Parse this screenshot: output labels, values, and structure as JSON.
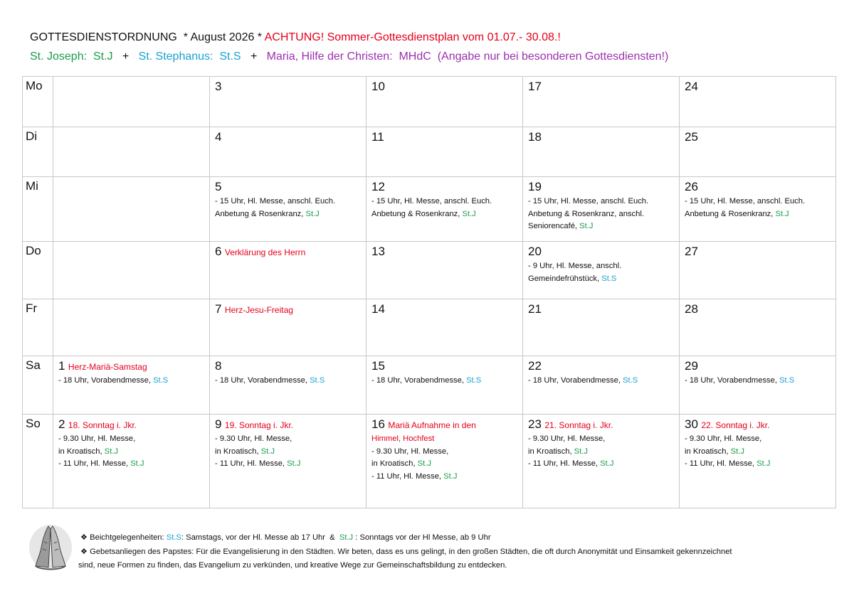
{
  "header": {
    "title": [
      "GOTTESDIENSTORDNUNG  * August 2026 * ",
      {
        "text": "ACHTUNG! Sommer-Gottesdienstplan vom 01.07.- 30.08.!",
        "color": "#e3001b"
      }
    ],
    "legend": [
      {
        "text": "St. Joseph:  St.J",
        "color": "#1a9c4b"
      },
      "   +   ",
      {
        "text": "St. Stephanus:  St.S",
        "color": "#17a2d4"
      },
      "   +   ",
      {
        "text": "Maria, Hilfe der Christen:  MHdC  (Angabe nur bei besonderen Gottesdiensten!)",
        "color": "#9b30b0"
      }
    ]
  },
  "calendar": {
    "rows": [
      {
        "weekday": "Mo",
        "cells": [
          null,
          {
            "day": 3
          },
          {
            "day": 10
          },
          {
            "day": 17
          },
          {
            "day": 24
          }
        ]
      },
      {
        "weekday": "Di",
        "cells": [
          null,
          {
            "day": 4
          },
          {
            "day": 11
          },
          {
            "day": 18
          },
          {
            "day": 25
          }
        ]
      },
      {
        "weekday": "Mi",
        "cells": [
          null,
          {
            "day": 5,
            "lines": [
              [
                "- 15 Uhr, Hl. Messe, anschl. Euch."
              ],
              [
                "Anbetung & Rosenkranz, ",
                {
                  "text": "St.J",
                  "color": "#1a9c4b"
                }
              ]
            ]
          },
          {
            "day": 12,
            "lines": [
              [
                "- 15 Uhr, Hl. Messe, anschl. Euch."
              ],
              [
                "Anbetung & Rosenkranz, ",
                {
                  "text": "St.J",
                  "color": "#1a9c4b"
                }
              ]
            ]
          },
          {
            "day": 19,
            "lines": [
              [
                "- 15 Uhr, Hl. Messe, anschl. Euch."
              ],
              [
                "Anbetung & Rosenkranz, anschl."
              ],
              [
                "Seniorencafé, ",
                {
                  "text": "St.J",
                  "color": "#1a9c4b"
                }
              ]
            ]
          },
          {
            "day": 26,
            "lines": [
              [
                "- 15 Uhr, Hl. Messe, anschl. Euch."
              ],
              [
                "Anbetung & Rosenkranz, ",
                {
                  "text": "St.J",
                  "color": "#1a9c4b"
                }
              ]
            ]
          }
        ]
      },
      {
        "weekday": "Do",
        "cells": [
          null,
          {
            "day": 6,
            "feast": "Verklärung des Herrn"
          },
          {
            "day": 13
          },
          {
            "day": 20,
            "lines": [
              [
                "- 9 Uhr, Hl. Messe, anschl."
              ],
              [
                "Gemeindefrühstück, ",
                {
                  "text": "St.S",
                  "color": "#17a2d4"
                }
              ]
            ]
          },
          {
            "day": 27
          }
        ]
      },
      {
        "weekday": "Fr",
        "cells": [
          null,
          {
            "day": 7,
            "feast": "Herz-Jesu-Freitag"
          },
          {
            "day": 14
          },
          {
            "day": 21
          },
          {
            "day": 28
          }
        ]
      },
      {
        "weekday": "Sa",
        "cells": [
          {
            "day": 1,
            "feast": "Herz-Mariä-Samstag",
            "lines": [
              [
                "- 18 Uhr, Vorabendmesse, ",
                {
                  "text": "St.S",
                  "color": "#17a2d4"
                }
              ]
            ]
          },
          {
            "day": 8,
            "lines": [
              [
                "- 18 Uhr, Vorabendmesse, ",
                {
                  "text": "St.S",
                  "color": "#17a2d4"
                }
              ]
            ]
          },
          {
            "day": 15,
            "lines": [
              [
                "- 18 Uhr, Vorabendmesse, ",
                {
                  "text": "St.S",
                  "color": "#17a2d4"
                }
              ]
            ]
          },
          {
            "day": 22,
            "lines": [
              [
                "- 18 Uhr, Vorabendmesse, ",
                {
                  "text": "St.S",
                  "color": "#17a2d4"
                }
              ]
            ]
          },
          {
            "day": 29,
            "lines": [
              [
                "- 18 Uhr, Vorabendmesse, ",
                {
                  "text": "St.S",
                  "color": "#17a2d4"
                }
              ]
            ]
          }
        ]
      },
      {
        "weekday": "So",
        "cells": [
          {
            "day": 2,
            "feast": "18. Sonntag i. Jkr.",
            "lines": [
              [
                "- 9.30 Uhr, Hl. Messe,"
              ],
              [
                "in Kroatisch, ",
                {
                  "text": "St.J",
                  "color": "#1a9c4b"
                }
              ],
              [
                "- 11 Uhr, Hl. Messe, ",
                {
                  "text": "St.J",
                  "color": "#1a9c4b"
                }
              ]
            ]
          },
          {
            "day": 9,
            "feast": "19. Sonntag i. Jkr.",
            "lines": [
              [
                "- 9.30 Uhr, Hl. Messe,"
              ],
              [
                "in Kroatisch, ",
                {
                  "text": "St.J",
                  "color": "#1a9c4b"
                }
              ],
              [
                "- 11 Uhr, Hl. Messe, ",
                {
                  "text": "St.J",
                  "color": "#1a9c4b"
                }
              ]
            ]
          },
          {
            "day": 16,
            "feast": "Mariä Aufnahme in den",
            "lines": [
              [
                {
                  "text": "Himmel, Hochfest",
                  "color": "#e3001b"
                }
              ],
              [
                "- 9.30 Uhr, Hl. Messe,"
              ],
              [
                "in Kroatisch, ",
                {
                  "text": "St.J",
                  "color": "#1a9c4b"
                }
              ],
              [
                "- 11 Uhr, Hl. Messe, ",
                {
                  "text": "St.J",
                  "color": "#1a9c4b"
                }
              ]
            ]
          },
          {
            "day": 23,
            "feast": "21. Sonntag i. Jkr.",
            "lines": [
              [
                "- 9.30 Uhr, Hl. Messe,"
              ],
              [
                "in Kroatisch, ",
                {
                  "text": "St.J",
                  "color": "#1a9c4b"
                }
              ],
              [
                "- 11 Uhr, Hl. Messe, ",
                {
                  "text": "St.J",
                  "color": "#1a9c4b"
                }
              ]
            ]
          },
          {
            "day": 30,
            "feast": "22. Sonntag i. Jkr.",
            "lines": [
              [
                "- 9.30 Uhr, Hl. Messe,"
              ],
              [
                "in Kroatisch, ",
                {
                  "text": "St.J",
                  "color": "#1a9c4b"
                }
              ],
              [
                "- 11 Uhr, Hl. Messe, ",
                {
                  "text": "St.J",
                  "color": "#1a9c4b"
                }
              ]
            ]
          }
        ]
      }
    ]
  },
  "footer": {
    "lines": [
      [
        "❖ Beichtgelegenheiten: ",
        {
          "text": "St.S",
          "color": "#17a2d4"
        },
        ": Samstags, vor der Hl. Messe ab 17 Uhr  &  ",
        {
          "text": "St.J",
          "color": "#1a9c4b"
        },
        " : Sonntags vor der Hl Messe, ab 9 Uhr"
      ],
      [
        "❖ Gebetsanliegen des Papstes: Für die Evangelisierung in den Städten. Wir beten, dass es uns gelingt, in den großen Städten, die oft durch Anonymität und Einsamkeit gekennzeichnet"
      ],
      [
        "sind, neue Formen zu finden, das Evangelium zu verkünden, und kreative Wege zur Gemeinschaftsbildung zu entdecken."
      ]
    ]
  }
}
